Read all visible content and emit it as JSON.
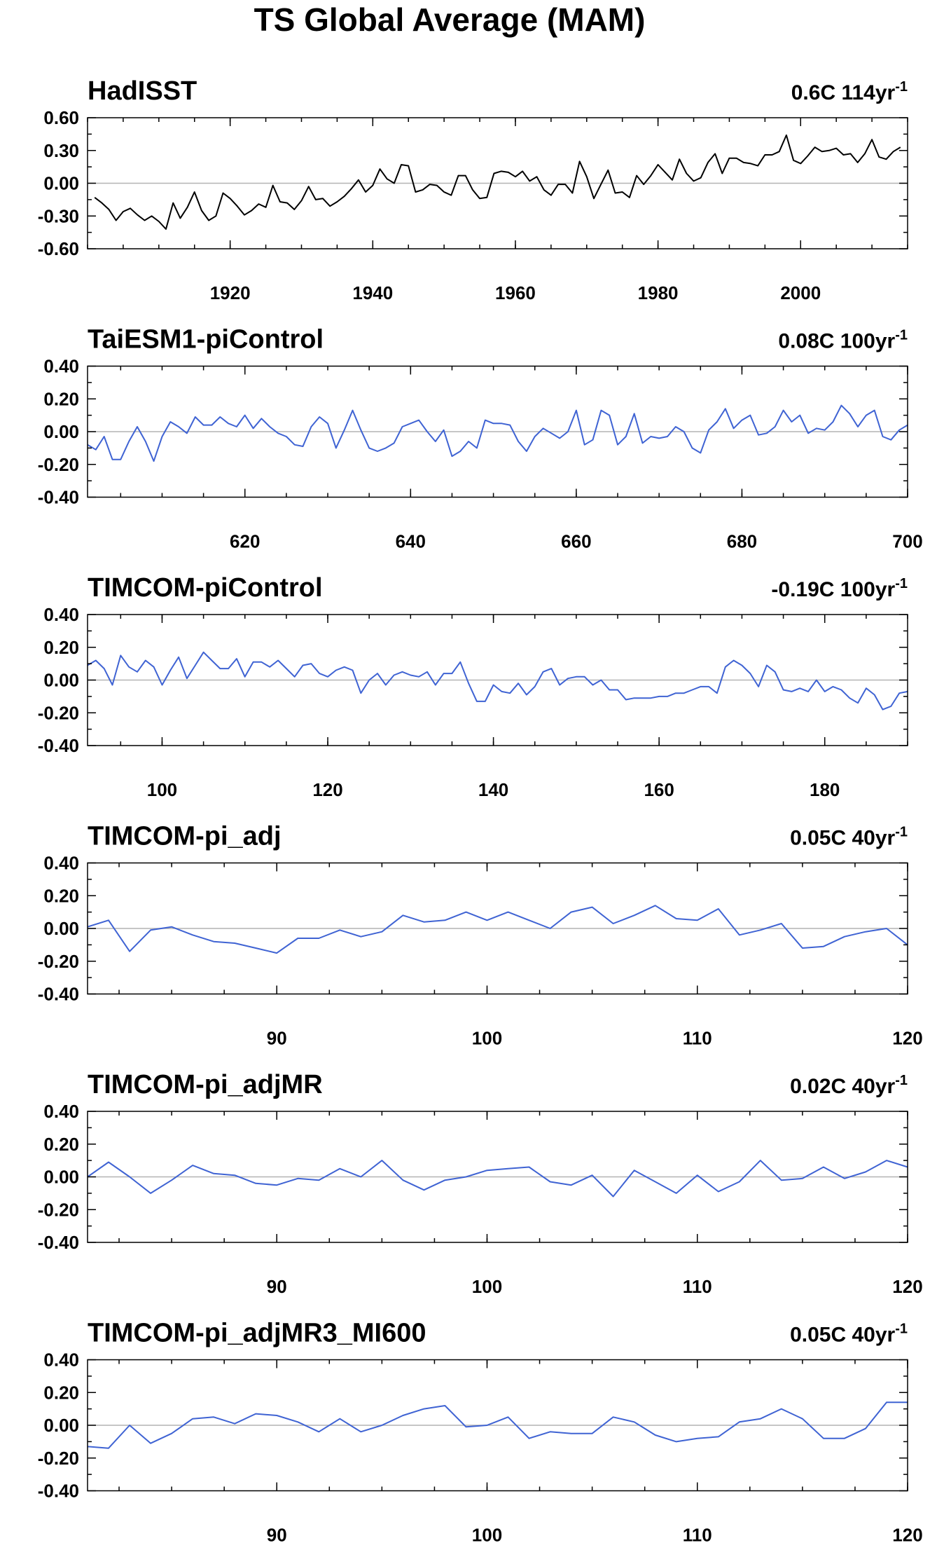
{
  "title": "TS Global Average (MAM)",
  "chart_data": [
    {
      "type": "line",
      "title": "HadISST",
      "trend_label": "0.6C 114yr",
      "trend_exponent": "-1",
      "color": "#000000",
      "xlim": [
        1900,
        2015
      ],
      "ylim": [
        -0.6,
        0.6
      ],
      "yticks": [
        0.6,
        0.3,
        0.0,
        -0.3,
        -0.6
      ],
      "ytick_labels": [
        "0.60",
        "0.30",
        "0.00",
        "-0.30",
        "-0.60"
      ],
      "xticks": [
        1920,
        1940,
        1960,
        1980,
        2000
      ],
      "xtick_labels": [
        "1920",
        "1940",
        "1960",
        "1980",
        "2000"
      ],
      "x": [
        1901,
        1902,
        1903,
        1904,
        1905,
        1906,
        1907,
        1908,
        1909,
        1910,
        1911,
        1912,
        1913,
        1914,
        1915,
        1916,
        1917,
        1918,
        1919,
        1920,
        1921,
        1922,
        1923,
        1924,
        1925,
        1926,
        1927,
        1928,
        1929,
        1930,
        1931,
        1932,
        1933,
        1934,
        1935,
        1936,
        1937,
        1938,
        1939,
        1940,
        1941,
        1942,
        1943,
        1944,
        1945,
        1946,
        1947,
        1948,
        1949,
        1950,
        1951,
        1952,
        1953,
        1954,
        1955,
        1956,
        1957,
        1958,
        1959,
        1960,
        1961,
        1962,
        1963,
        1964,
        1965,
        1966,
        1967,
        1968,
        1969,
        1970,
        1971,
        1972,
        1973,
        1974,
        1975,
        1976,
        1977,
        1978,
        1979,
        1980,
        1981,
        1982,
        1983,
        1984,
        1985,
        1986,
        1987,
        1988,
        1989,
        1990,
        1991,
        1992,
        1993,
        1994,
        1995,
        1996,
        1997,
        1998,
        1999,
        2000,
        2001,
        2002,
        2003,
        2004,
        2005,
        2006,
        2007,
        2008,
        2009,
        2010,
        2011,
        2012,
        2013,
        2014
      ],
      "y": [
        -0.13,
        -0.18,
        -0.24,
        -0.34,
        -0.26,
        -0.23,
        -0.29,
        -0.34,
        -0.3,
        -0.35,
        -0.42,
        -0.18,
        -0.32,
        -0.22,
        -0.08,
        -0.25,
        -0.34,
        -0.3,
        -0.09,
        -0.14,
        -0.21,
        -0.29,
        -0.25,
        -0.19,
        -0.22,
        -0.02,
        -0.17,
        -0.18,
        -0.24,
        -0.16,
        -0.03,
        -0.15,
        -0.14,
        -0.21,
        -0.17,
        -0.12,
        -0.05,
        0.03,
        -0.08,
        -0.02,
        0.13,
        0.04,
        0.0,
        0.17,
        0.16,
        -0.08,
        -0.06,
        -0.01,
        -0.02,
        -0.08,
        -0.11,
        0.07,
        0.07,
        -0.06,
        -0.14,
        -0.13,
        0.09,
        0.11,
        0.1,
        0.06,
        0.11,
        0.02,
        0.06,
        -0.06,
        -0.11,
        -0.01,
        -0.01,
        -0.09,
        0.2,
        0.06,
        -0.14,
        -0.01,
        0.12,
        -0.09,
        -0.08,
        -0.13,
        0.07,
        -0.01,
        0.07,
        0.17,
        0.1,
        0.03,
        0.22,
        0.09,
        0.02,
        0.05,
        0.19,
        0.27,
        0.09,
        0.23,
        0.23,
        0.19,
        0.18,
        0.16,
        0.26,
        0.26,
        0.29,
        0.44,
        0.21,
        0.18,
        0.25,
        0.33,
        0.29,
        0.3,
        0.32,
        0.26,
        0.27,
        0.19,
        0.27,
        0.4,
        0.24,
        0.22,
        0.29,
        0.33
      ]
    },
    {
      "type": "line",
      "title": "TaiESM1-piControl",
      "trend_label": "0.08C 100yr",
      "trend_exponent": "-1",
      "color": "#3f63d3",
      "xlim": [
        601,
        700
      ],
      "ylim": [
        -0.4,
        0.4
      ],
      "yticks": [
        0.4,
        0.2,
        0.0,
        -0.2,
        -0.4
      ],
      "ytick_labels": [
        "0.40",
        "0.20",
        "0.00",
        "-0.20",
        "-0.40"
      ],
      "xticks": [
        620,
        640,
        660,
        680,
        700
      ],
      "xtick_labels": [
        "620",
        "640",
        "660",
        "680",
        "700"
      ],
      "x": [
        601,
        602,
        603,
        604,
        605,
        606,
        607,
        608,
        609,
        610,
        611,
        612,
        613,
        614,
        615,
        616,
        617,
        618,
        619,
        620,
        621,
        622,
        623,
        624,
        625,
        626,
        627,
        628,
        629,
        630,
        631,
        632,
        633,
        634,
        635,
        636,
        637,
        638,
        639,
        640,
        641,
        642,
        643,
        644,
        645,
        646,
        647,
        648,
        649,
        650,
        651,
        652,
        653,
        654,
        655,
        656,
        657,
        658,
        659,
        660,
        661,
        662,
        663,
        664,
        665,
        666,
        667,
        668,
        669,
        670,
        671,
        672,
        673,
        674,
        675,
        676,
        677,
        678,
        679,
        680,
        681,
        682,
        683,
        684,
        685,
        686,
        687,
        688,
        689,
        690,
        691,
        692,
        693,
        694,
        695,
        696,
        697,
        698,
        699,
        700
      ],
      "y": [
        -0.08,
        -0.11,
        -0.03,
        -0.17,
        -0.17,
        -0.06,
        0.03,
        -0.06,
        -0.18,
        -0.03,
        0.06,
        0.03,
        -0.01,
        0.09,
        0.04,
        0.04,
        0.09,
        0.05,
        0.03,
        0.1,
        0.02,
        0.08,
        0.03,
        -0.01,
        -0.03,
        -0.08,
        -0.09,
        0.03,
        0.09,
        0.05,
        -0.1,
        0.01,
        0.13,
        0.01,
        -0.1,
        -0.12,
        -0.1,
        -0.07,
        0.03,
        0.05,
        0.07,
        0.0,
        -0.06,
        0.01,
        -0.15,
        -0.12,
        -0.06,
        -0.1,
        0.07,
        0.05,
        0.05,
        0.04,
        -0.06,
        -0.12,
        -0.03,
        0.02,
        -0.01,
        -0.04,
        0.0,
        0.13,
        -0.08,
        -0.05,
        0.13,
        0.1,
        -0.08,
        -0.03,
        0.11,
        -0.07,
        -0.03,
        -0.04,
        -0.03,
        0.03,
        0.0,
        -0.1,
        -0.13,
        0.01,
        0.06,
        0.14,
        0.02,
        0.07,
        0.1,
        -0.02,
        -0.01,
        0.03,
        0.13,
        0.06,
        0.1,
        -0.01,
        0.02,
        0.01,
        0.06,
        0.16,
        0.11,
        0.03,
        0.1,
        0.13,
        -0.03,
        -0.05,
        0.01,
        0.04
      ]
    },
    {
      "type": "line",
      "title": "TIMCOM-piControl",
      "trend_label": "-0.19C 100yr",
      "trend_exponent": "-1",
      "color": "#3f63d3",
      "xlim": [
        91,
        190
      ],
      "ylim": [
        -0.4,
        0.4
      ],
      "yticks": [
        0.4,
        0.2,
        0.0,
        -0.2,
        -0.4
      ],
      "ytick_labels": [
        "0.40",
        "0.20",
        "0.00",
        "-0.20",
        "-0.40"
      ],
      "xticks": [
        100,
        120,
        140,
        160,
        180
      ],
      "xtick_labels": [
        "100",
        "120",
        "140",
        "160",
        "180"
      ],
      "x": [
        91,
        92,
        93,
        94,
        95,
        96,
        97,
        98,
        99,
        100,
        101,
        102,
        103,
        104,
        105,
        106,
        107,
        108,
        109,
        110,
        111,
        112,
        113,
        114,
        115,
        116,
        117,
        118,
        119,
        120,
        121,
        122,
        123,
        124,
        125,
        126,
        127,
        128,
        129,
        130,
        131,
        132,
        133,
        134,
        135,
        136,
        137,
        138,
        139,
        140,
        141,
        142,
        143,
        144,
        145,
        146,
        147,
        148,
        149,
        150,
        151,
        152,
        153,
        154,
        155,
        156,
        157,
        158,
        159,
        160,
        161,
        162,
        163,
        164,
        165,
        166,
        167,
        168,
        169,
        170,
        171,
        172,
        173,
        174,
        175,
        176,
        177,
        178,
        179,
        180,
        181,
        182,
        183,
        184,
        185,
        186,
        187,
        188,
        189,
        190
      ],
      "y": [
        0.09,
        0.12,
        0.07,
        -0.03,
        0.15,
        0.08,
        0.05,
        0.12,
        0.08,
        -0.03,
        0.06,
        0.14,
        0.01,
        0.09,
        0.17,
        0.12,
        0.07,
        0.07,
        0.13,
        0.02,
        0.11,
        0.11,
        0.08,
        0.12,
        0.07,
        0.02,
        0.09,
        0.1,
        0.04,
        0.02,
        0.06,
        0.08,
        0.06,
        -0.08,
        0.0,
        0.04,
        -0.03,
        0.03,
        0.05,
        0.03,
        0.02,
        0.05,
        -0.03,
        0.04,
        0.04,
        0.11,
        -0.02,
        -0.13,
        -0.13,
        -0.03,
        -0.07,
        -0.08,
        -0.02,
        -0.09,
        -0.04,
        0.05,
        0.07,
        -0.03,
        0.01,
        0.02,
        0.02,
        -0.03,
        0.0,
        -0.06,
        -0.06,
        -0.12,
        -0.11,
        -0.11,
        -0.11,
        -0.1,
        -0.1,
        -0.08,
        -0.08,
        -0.06,
        -0.04,
        -0.04,
        -0.08,
        0.08,
        0.12,
        0.09,
        0.04,
        -0.04,
        0.09,
        0.05,
        -0.06,
        -0.07,
        -0.05,
        -0.07,
        0.0,
        -0.07,
        -0.04,
        -0.06,
        -0.11,
        -0.14,
        -0.05,
        -0.09,
        -0.18,
        -0.16,
        -0.08,
        -0.07
      ]
    },
    {
      "type": "line",
      "title": "TIMCOM-pi_adj",
      "trend_label": "0.05C 40yr",
      "trend_exponent": "-1",
      "color": "#3f63d3",
      "xlim": [
        81,
        120
      ],
      "ylim": [
        -0.4,
        0.4
      ],
      "yticks": [
        0.4,
        0.2,
        0.0,
        -0.2,
        -0.4
      ],
      "ytick_labels": [
        "0.40",
        "0.20",
        "0.00",
        "-0.20",
        "-0.40"
      ],
      "xticks": [
        90,
        100,
        110,
        120
      ],
      "xtick_labels": [
        "90",
        "100",
        "110",
        "120"
      ],
      "x": [
        81,
        82,
        83,
        84,
        85,
        86,
        87,
        88,
        89,
        90,
        91,
        92,
        93,
        94,
        95,
        96,
        97,
        98,
        99,
        100,
        101,
        102,
        103,
        104,
        105,
        106,
        107,
        108,
        109,
        110,
        111,
        112,
        113,
        114,
        115,
        116,
        117,
        118,
        119,
        120
      ],
      "y": [
        0.01,
        0.05,
        -0.14,
        -0.01,
        0.01,
        -0.04,
        -0.08,
        -0.09,
        -0.12,
        -0.15,
        -0.06,
        -0.06,
        -0.01,
        -0.05,
        -0.02,
        0.08,
        0.04,
        0.05,
        0.1,
        0.05,
        0.1,
        0.05,
        0.0,
        0.1,
        0.13,
        0.03,
        0.08,
        0.14,
        0.06,
        0.05,
        0.12,
        -0.04,
        -0.01,
        0.03,
        -0.12,
        -0.11,
        -0.05,
        -0.02,
        0.0,
        -0.1
      ]
    },
    {
      "type": "line",
      "title": "TIMCOM-pi_adjMR",
      "trend_label": "0.02C 40yr",
      "trend_exponent": "-1",
      "color": "#3f63d3",
      "xlim": [
        81,
        120
      ],
      "ylim": [
        -0.4,
        0.4
      ],
      "yticks": [
        0.4,
        0.2,
        0.0,
        -0.2,
        -0.4
      ],
      "ytick_labels": [
        "0.40",
        "0.20",
        "0.00",
        "-0.20",
        "-0.40"
      ],
      "xticks": [
        90,
        100,
        110,
        120
      ],
      "xtick_labels": [
        "90",
        "100",
        "110",
        "120"
      ],
      "x": [
        81,
        82,
        83,
        84,
        85,
        86,
        87,
        88,
        89,
        90,
        91,
        92,
        93,
        94,
        95,
        96,
        97,
        98,
        99,
        100,
        101,
        102,
        103,
        104,
        105,
        106,
        107,
        108,
        109,
        110,
        111,
        112,
        113,
        114,
        115,
        116,
        117,
        118,
        119,
        120
      ],
      "y": [
        0.0,
        0.09,
        0.0,
        -0.1,
        -0.02,
        0.07,
        0.02,
        0.01,
        -0.04,
        -0.05,
        -0.01,
        -0.02,
        0.05,
        0.0,
        0.1,
        -0.02,
        -0.08,
        -0.02,
        0.0,
        0.04,
        0.05,
        0.06,
        -0.03,
        -0.05,
        0.01,
        -0.12,
        0.04,
        -0.03,
        -0.1,
        0.01,
        -0.09,
        -0.03,
        0.1,
        -0.02,
        -0.01,
        0.06,
        -0.01,
        0.03,
        0.1,
        0.06
      ]
    },
    {
      "type": "line",
      "title": "TIMCOM-pi_adjMR3_MI600",
      "trend_label": "0.05C 40yr",
      "trend_exponent": "-1",
      "color": "#3f63d3",
      "xlim": [
        81,
        120
      ],
      "ylim": [
        -0.4,
        0.4
      ],
      "yticks": [
        0.4,
        0.2,
        0.0,
        -0.2,
        -0.4
      ],
      "ytick_labels": [
        "0.40",
        "0.20",
        "0.00",
        "-0.20",
        "-0.40"
      ],
      "xticks": [
        90,
        100,
        110,
        120
      ],
      "xtick_labels": [
        "90",
        "100",
        "110",
        "120"
      ],
      "x": [
        81,
        82,
        83,
        84,
        85,
        86,
        87,
        88,
        89,
        90,
        91,
        92,
        93,
        94,
        95,
        96,
        97,
        98,
        99,
        100,
        101,
        102,
        103,
        104,
        105,
        106,
        107,
        108,
        109,
        110,
        111,
        112,
        113,
        114,
        115,
        116,
        117,
        118,
        119,
        120
      ],
      "y": [
        -0.13,
        -0.14,
        0.0,
        -0.11,
        -0.05,
        0.04,
        0.05,
        0.01,
        0.07,
        0.06,
        0.02,
        -0.04,
        0.04,
        -0.04,
        0.0,
        0.06,
        0.1,
        0.12,
        -0.01,
        0.0,
        0.05,
        -0.08,
        -0.04,
        -0.05,
        -0.05,
        0.05,
        0.02,
        -0.06,
        -0.1,
        -0.08,
        -0.07,
        0.02,
        0.04,
        0.1,
        0.04,
        -0.08,
        -0.08,
        -0.02,
        0.14,
        0.14
      ]
    }
  ]
}
